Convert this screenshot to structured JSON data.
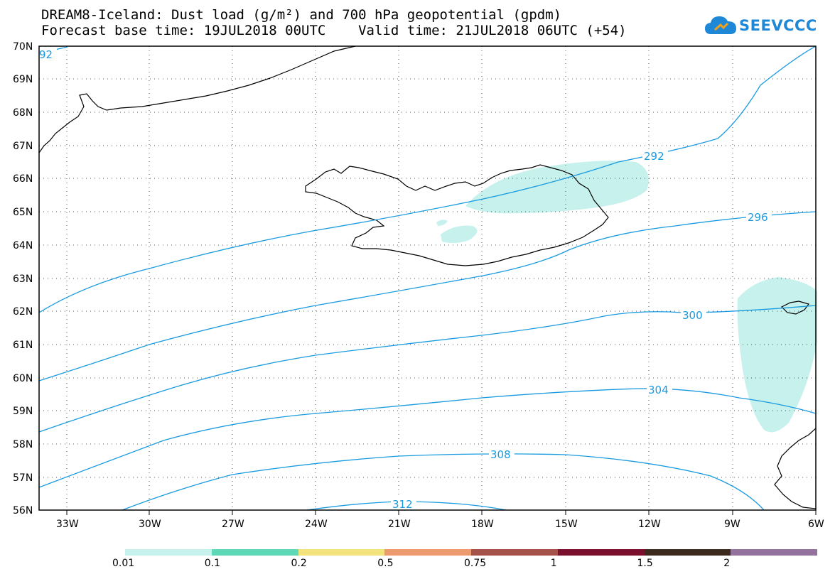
{
  "title_line1": "DREAM8-Iceland: Dust load (g/m²) and 700 hPa geopotential (gpdm)",
  "title_line2": "Forecast base time: 19JUL2018 00UTC    Valid time: 21JUL2018 06UTC (+54)",
  "logo": {
    "text": "SEEVCCC",
    "icon": "cloud-logo-icon",
    "color": "#1e88d6"
  },
  "map": {
    "lat_labels": [
      "70N",
      "69N",
      "68N",
      "67N",
      "66N",
      "65N",
      "64N",
      "63N",
      "62N",
      "61N",
      "60N",
      "59N",
      "58N",
      "57N",
      "56N"
    ],
    "lon_labels": [
      "33W",
      "30W",
      "27W",
      "24W",
      "21W",
      "18W",
      "15W",
      "12W",
      "9W",
      "6W"
    ],
    "contour_color": "#1a9be0",
    "contour_labels": [
      "92",
      "292",
      "296",
      "300",
      "304",
      "308",
      "312"
    ],
    "dust_fill_color": "#c6f1ec"
  },
  "colorbar": {
    "labels": [
      "0.01",
      "0.1",
      "0.2",
      "0.5",
      "0.75",
      "1",
      "1.5",
      "2"
    ],
    "colors": [
      "#c6f1ec",
      "#5ed8b6",
      "#f3e37c",
      "#ed9a6e",
      "#a4524a",
      "#7a0f2e",
      "#3d2a1e",
      "#93739e"
    ]
  }
}
